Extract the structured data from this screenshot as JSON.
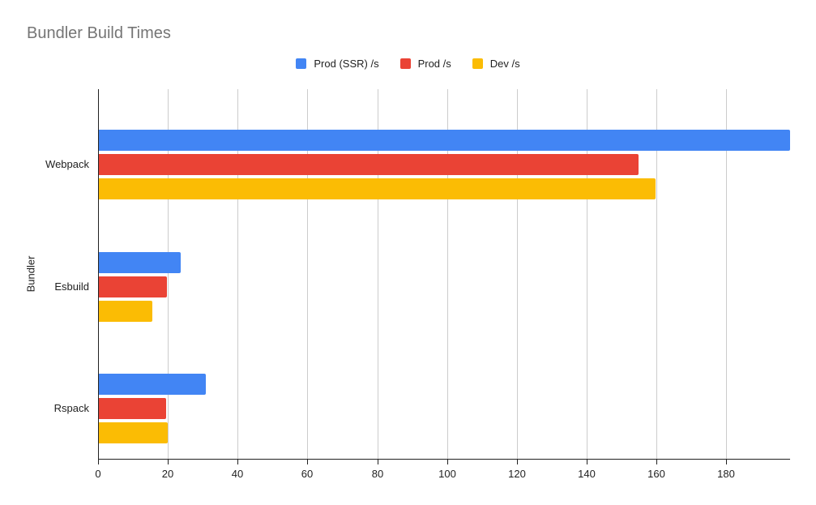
{
  "title": "Bundler Build Times",
  "colors": {
    "series_blue": "#4285F4",
    "series_red": "#EA4335",
    "series_yellow": "#FBBC04",
    "title_text": "#757575",
    "axis_text": "#1f1f1f",
    "gridline": "#cccccc",
    "axis_line": "#212121",
    "background": "#ffffff"
  },
  "chart_data": {
    "type": "bar",
    "orientation": "horizontal",
    "title": "Bundler Build Times",
    "xlabel": "",
    "ylabel": "Bundler",
    "categories": [
      "Webpack",
      "Esbuild",
      "Rspack"
    ],
    "series": [
      {
        "name": "Prod (SSR) /s",
        "color": "#4285F4",
        "values": [
          198,
          23.5,
          30.6
        ]
      },
      {
        "name": "Prod /s",
        "color": "#EA4335",
        "values": [
          154.5,
          19.4,
          19.2
        ]
      },
      {
        "name": "Dev /s",
        "color": "#FBBC04",
        "values": [
          159.5,
          15.3,
          19.8
        ]
      }
    ],
    "x_axis": {
      "min": 0,
      "max": 198,
      "tick_interval": 20,
      "ticks": [
        0,
        20,
        40,
        60,
        80,
        100,
        120,
        140,
        160,
        180
      ]
    },
    "grid": true,
    "legend_position": "top"
  }
}
